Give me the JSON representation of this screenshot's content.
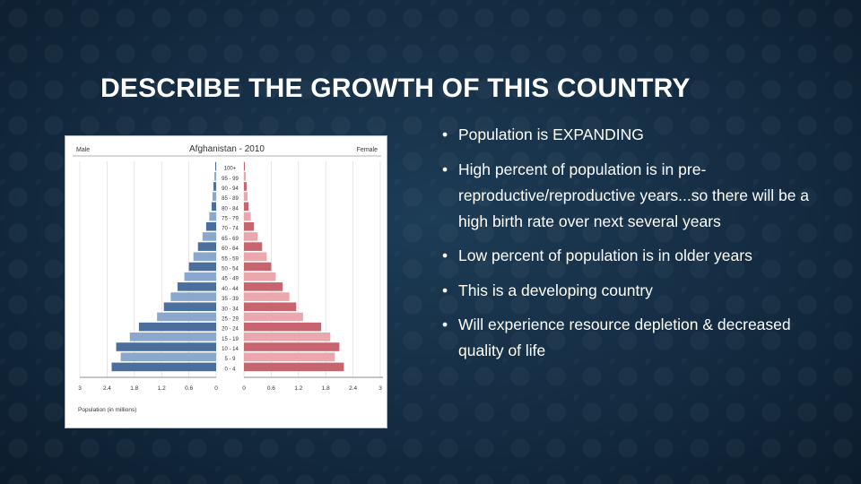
{
  "slide": {
    "title": "DESCRIBE THE GROWTH OF THIS COUNTRY",
    "bullets": [
      "Population is EXPANDING",
      "High percent of population is in pre-reproductive/reproductive years...so there will be a high birth rate over next several years",
      "Low percent of population is in older years",
      "This is a developing country",
      "Will experience resource depletion & decreased quality of life"
    ]
  },
  "chart_data": {
    "type": "bar",
    "orientation": "horizontal",
    "subtype": "population-pyramid",
    "title": "Afghanistan - 2010",
    "left_label": "Male",
    "right_label": "Female",
    "xlabel": "Population (in millions)",
    "categories": [
      "100+",
      "95 - 99",
      "90 - 94",
      "85 - 89",
      "80 - 84",
      "75 - 79",
      "70 - 74",
      "65 - 69",
      "60 - 64",
      "55 - 59",
      "50 - 54",
      "45 - 49",
      "40 - 44",
      "35 - 39",
      "30 - 34",
      "25 - 29",
      "20 - 24",
      "15 - 19",
      "10 - 14",
      "5 - 9",
      "0 - 4"
    ],
    "series": [
      {
        "name": "Male",
        "values": [
          0.02,
          0.04,
          0.06,
          0.08,
          0.1,
          0.15,
          0.22,
          0.3,
          0.4,
          0.5,
          0.6,
          0.7,
          0.85,
          1.0,
          1.15,
          1.3,
          1.7,
          1.9,
          2.2,
          2.1,
          2.3
        ],
        "color": "#4a6f9c"
      },
      {
        "name": "Female",
        "values": [
          0.02,
          0.04,
          0.06,
          0.08,
          0.1,
          0.15,
          0.22,
          0.3,
          0.4,
          0.5,
          0.6,
          0.7,
          0.85,
          1.0,
          1.15,
          1.3,
          1.7,
          1.9,
          2.1,
          2.0,
          2.2
        ],
        "color": "#c8646e"
      }
    ],
    "xlim": [
      0,
      3
    ],
    "xticks_left": [
      "3",
      "2.4",
      "1.8",
      "1.2",
      "0.6",
      "0"
    ],
    "xticks_right": [
      "0",
      "0.6",
      "1.2",
      "1.8",
      "2.4",
      "3"
    ],
    "grid": true
  }
}
